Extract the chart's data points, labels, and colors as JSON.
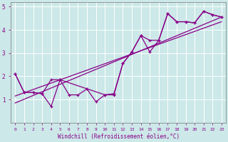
{
  "xlabel": "Windchill (Refroidissement éolien,°C)",
  "bg_color": "#cce8e8",
  "line_color": "#880088",
  "xlim": [
    -0.5,
    23.5
  ],
  "ylim": [
    0,
    5.2
  ],
  "xticks": [
    0,
    1,
    2,
    3,
    4,
    5,
    6,
    7,
    8,
    9,
    10,
    11,
    12,
    13,
    14,
    15,
    16,
    17,
    18,
    19,
    20,
    21,
    22,
    23
  ],
  "yticks": [
    1,
    2,
    3,
    4,
    5
  ],
  "series1_x": [
    0,
    1,
    2,
    3,
    4,
    5,
    6,
    7,
    8,
    9,
    10,
    11,
    12,
    13,
    14,
    15,
    16,
    17,
    18,
    19,
    20,
    21,
    22,
    23
  ],
  "series1_y": [
    2.1,
    1.3,
    1.3,
    1.25,
    1.85,
    1.85,
    1.2,
    1.2,
    1.45,
    0.9,
    1.2,
    1.25,
    2.55,
    3.05,
    3.75,
    3.55,
    3.55,
    4.7,
    4.35,
    4.35,
    4.3,
    4.8,
    4.65,
    4.55
  ],
  "series2_x": [
    0,
    1,
    2,
    3,
    4,
    5,
    10,
    11,
    12,
    13,
    14,
    15,
    16,
    17,
    18,
    19,
    20,
    21,
    22,
    23
  ],
  "series2_y": [
    2.1,
    1.3,
    1.3,
    1.25,
    0.7,
    1.85,
    1.2,
    1.2,
    2.55,
    3.05,
    3.75,
    3.05,
    3.55,
    4.7,
    4.35,
    4.35,
    4.3,
    4.8,
    4.65,
    4.55
  ],
  "trend1_x": [
    0,
    23
  ],
  "trend1_y": [
    1.15,
    4.35
  ],
  "trend2_x": [
    0,
    23
  ],
  "trend2_y": [
    0.85,
    4.55
  ]
}
